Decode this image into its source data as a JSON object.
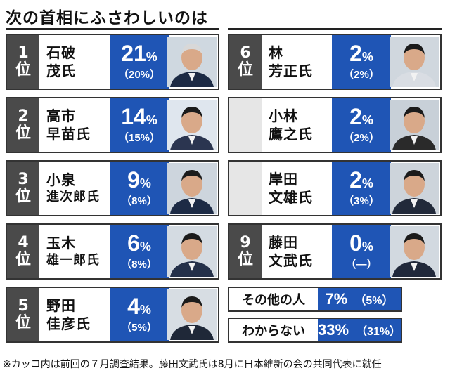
{
  "title": "次の首相にふさわしいのは",
  "footnote": "※カッコ内は前回の７月調査結果。藤田文武氏は8月に日本維新の会の共同代表に就任",
  "chart_data": {
    "type": "table",
    "title": "次の首相にふさわしいのは",
    "rows": [
      {
        "rank": "1",
        "rank_suffix": "位",
        "name_line1": "石破",
        "name_line2": "茂氏",
        "value": 21,
        "value_text": "21",
        "unit": "%",
        "previous": 20,
        "previous_text": "（20%）"
      },
      {
        "rank": "2",
        "rank_suffix": "位",
        "name_line1": "高市",
        "name_line2": "早苗氏",
        "value": 14,
        "value_text": "14",
        "unit": "%",
        "previous": 15,
        "previous_text": "（15%）"
      },
      {
        "rank": "3",
        "rank_suffix": "位",
        "name_line1": "小泉",
        "name_line2": "進次郎氏",
        "value": 9,
        "value_text": "9",
        "unit": "%",
        "previous": 8,
        "previous_text": "（8%）"
      },
      {
        "rank": "4",
        "rank_suffix": "位",
        "name_line1": "玉木",
        "name_line2": "雄一郎氏",
        "value": 6,
        "value_text": "6",
        "unit": "%",
        "previous": 8,
        "previous_text": "（8%）"
      },
      {
        "rank": "5",
        "rank_suffix": "位",
        "name_line1": "野田",
        "name_line2": "佳彦氏",
        "value": 4,
        "value_text": "4",
        "unit": "%",
        "previous": 5,
        "previous_text": "（5%）"
      },
      {
        "rank": "6",
        "rank_suffix": "位",
        "name_line1": "林",
        "name_line2": "芳正氏",
        "value": 2,
        "value_text": "2",
        "unit": "%",
        "previous": 2,
        "previous_text": "（2%）"
      },
      {
        "rank": "",
        "rank_suffix": "",
        "name_line1": "小林",
        "name_line2": "鷹之氏",
        "value": 2,
        "value_text": "2",
        "unit": "%",
        "previous": 2,
        "previous_text": "（2%）"
      },
      {
        "rank": "",
        "rank_suffix": "",
        "name_line1": "岸田",
        "name_line2": "文雄氏",
        "value": 2,
        "value_text": "2",
        "unit": "%",
        "previous": 3,
        "previous_text": "（3%）"
      },
      {
        "rank": "9",
        "rank_suffix": "位",
        "name_line1": "藤田",
        "name_line2": "文武氏",
        "value": 0,
        "value_text": "0",
        "unit": "%",
        "previous": null,
        "previous_text": "（―）"
      }
    ],
    "others": [
      {
        "label": "その他の人",
        "value": 7,
        "value_text": "7%",
        "previous": 5,
        "previous_text": "（5%）"
      },
      {
        "label": "わからない",
        "value": 33,
        "value_text": "33%",
        "previous": 31,
        "previous_text": "（31%）"
      }
    ],
    "colors": {
      "value_bg": "#1f55b5",
      "rank_bg": "#4a4a4a"
    }
  }
}
